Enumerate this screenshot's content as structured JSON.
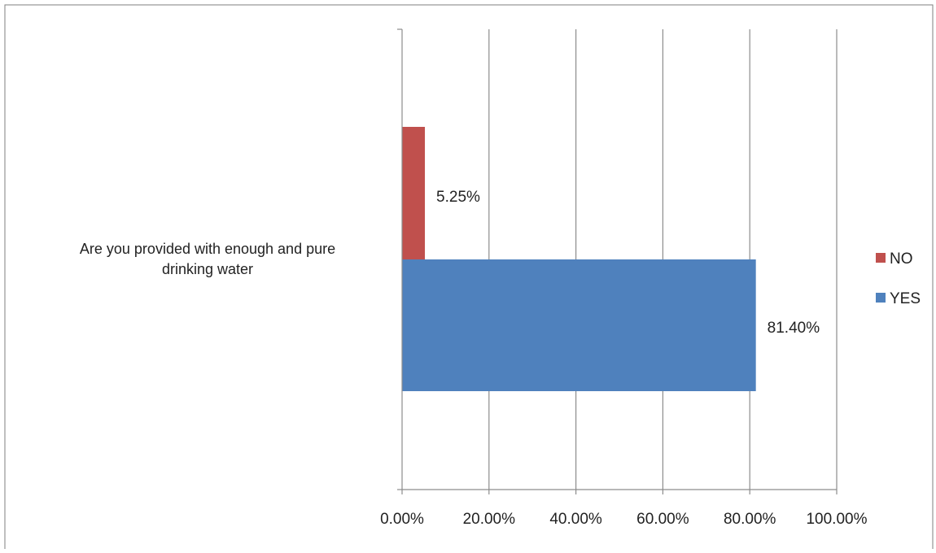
{
  "chart_data": {
    "type": "bar",
    "orientation": "horizontal",
    "categories": [
      "Are you provided with enough and pure drinking water"
    ],
    "category_label_lines": [
      "Are you provided with enough and pure",
      "drinking water"
    ],
    "series": [
      {
        "name": "YES",
        "values": [
          81.4
        ],
        "labels": [
          "81.40%"
        ],
        "color": "#4F81BD"
      },
      {
        "name": "NO",
        "values": [
          5.25
        ],
        "labels": [
          "5.25%"
        ],
        "color": "#C0504D"
      }
    ],
    "xlim": [
      0,
      100
    ],
    "x_ticks": [
      0,
      20,
      40,
      60,
      80,
      100
    ],
    "x_tick_labels": [
      "0.00%",
      "20.00%",
      "40.00%",
      "60.00%",
      "80.00%",
      "100.00%"
    ],
    "legend": {
      "position": "right",
      "order": [
        "NO",
        "YES"
      ]
    },
    "grid": true,
    "gridline_color": "#8c8c8c",
    "axis_color": "#8c8c8c",
    "frame_color": "#7f7f7f"
  }
}
